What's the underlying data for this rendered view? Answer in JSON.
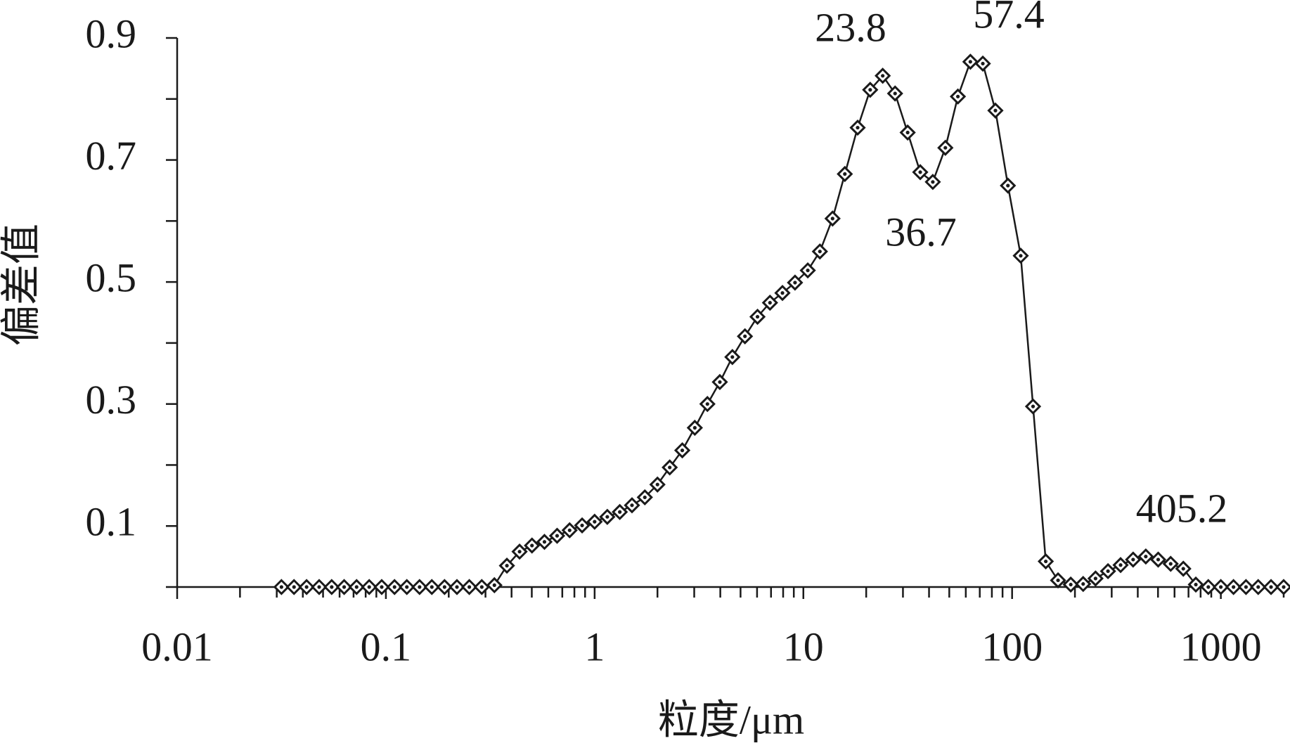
{
  "chart_data": {
    "type": "line",
    "xlabel": "粒度/μm",
    "ylabel": "偏差值",
    "xscale": "log",
    "xlim": [
      0.01,
      2000
    ],
    "xticks": [
      0.01,
      0.1,
      1,
      10,
      100,
      1000
    ],
    "xminor_ticks": [
      0.02,
      0.03,
      0.04,
      0.05,
      0.06,
      0.07,
      0.08,
      0.09,
      0.2,
      0.3,
      0.4,
      0.5,
      0.6,
      0.7,
      0.8,
      0.9,
      2,
      3,
      4,
      5,
      6,
      7,
      8,
      9,
      20,
      30,
      40,
      50,
      60,
      70,
      80,
      90,
      200,
      300,
      400,
      500,
      600,
      700,
      800,
      900,
      2000
    ],
    "ylim": [
      0,
      0.9
    ],
    "yticks": [
      0.1,
      0.3,
      0.5,
      0.7,
      0.9
    ],
    "yminor_ticks": [
      0,
      0.2,
      0.4,
      0.6,
      0.8
    ],
    "grid": false,
    "color": "#1a1a1a",
    "marker": "diamond",
    "x": [
      0.0316,
      0.0363,
      0.0417,
      0.0479,
      0.055,
      0.0631,
      0.0724,
      0.0832,
      0.0955,
      0.11,
      0.126,
      0.145,
      0.166,
      0.191,
      0.219,
      0.251,
      0.288,
      0.331,
      0.38,
      0.437,
      0.501,
      0.575,
      0.661,
      0.759,
      0.871,
      1,
      1.15,
      1.32,
      1.51,
      1.74,
      2,
      2.29,
      2.63,
      3.02,
      3.47,
      3.98,
      4.57,
      5.25,
      6.03,
      6.92,
      7.94,
      9.12,
      10.5,
      12,
      13.8,
      15.8,
      18.2,
      20.9,
      24,
      27.5,
      31.6,
      36.3,
      41.7,
      47.9,
      55,
      63.1,
      72.4,
      83.2,
      95.5,
      110,
      126,
      145,
      166,
      191,
      219,
      251,
      288,
      331,
      380,
      437,
      501,
      575,
      661,
      759,
      871,
      1000,
      1150,
      1320,
      1510,
      1740,
      2000
    ],
    "values": [
      0,
      0,
      0,
      0,
      0,
      0,
      0,
      0,
      0,
      0,
      0,
      0,
      0,
      0,
      0,
      0,
      0,
      0.003,
      0.035,
      0.058,
      0.068,
      0.074,
      0.084,
      0.093,
      0.101,
      0.107,
      0.115,
      0.123,
      0.134,
      0.147,
      0.168,
      0.196,
      0.224,
      0.261,
      0.3,
      0.336,
      0.377,
      0.411,
      0.443,
      0.466,
      0.482,
      0.499,
      0.519,
      0.55,
      0.604,
      0.677,
      0.753,
      0.815,
      0.838,
      0.809,
      0.745,
      0.68,
      0.664,
      0.72,
      0.804,
      0.861,
      0.858,
      0.781,
      0.658,
      0.543,
      0.296,
      0.042,
      0.011,
      0.004,
      0.005,
      0.014,
      0.026,
      0.036,
      0.045,
      0.05,
      0.045,
      0.038,
      0.03,
      0.004,
      0,
      0,
      0,
      0,
      0,
      0,
      0
    ],
    "annotations": [
      "23.8",
      "36.7",
      "57.4",
      "405.2"
    ]
  }
}
